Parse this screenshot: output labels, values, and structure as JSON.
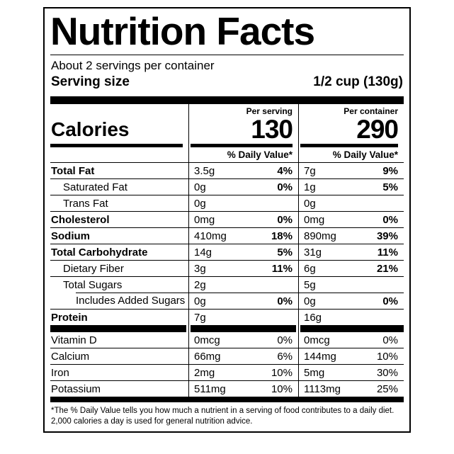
{
  "colors": {
    "text": "#000000",
    "background": "#ffffff"
  },
  "label": {
    "title": "Nutrition Facts",
    "servings_per_container": "About 2 servings per container",
    "serving_size_label": "Serving size",
    "serving_size_value": "1/2 cup (130g)",
    "calories": {
      "label": "Calories",
      "per_serving_header": "Per serving",
      "per_serving_value": "130",
      "per_container_header": "Per container",
      "per_container_value": "290"
    },
    "daily_value_header": "% Daily Value*",
    "nutrients": [
      {
        "name": "Total Fat",
        "serving_amount": "3.5g",
        "serving_dv": "4%",
        "container_amount": "7g",
        "container_dv": "9%"
      },
      {
        "name": "Saturated Fat",
        "serving_amount": "0g",
        "serving_dv": "0%",
        "container_amount": "1g",
        "container_dv": "5%"
      },
      {
        "name": "Trans Fat",
        "serving_amount": "0g",
        "serving_dv": "",
        "container_amount": "0g",
        "container_dv": ""
      },
      {
        "name": "Cholesterol",
        "serving_amount": "0mg",
        "serving_dv": "0%",
        "container_amount": "0mg",
        "container_dv": "0%"
      },
      {
        "name": "Sodium",
        "serving_amount": "410mg",
        "serving_dv": "18%",
        "container_amount": "890mg",
        "container_dv": "39%"
      },
      {
        "name": "Total Carbohydrate",
        "serving_amount": "14g",
        "serving_dv": "5%",
        "container_amount": "31g",
        "container_dv": "11%"
      },
      {
        "name": "Dietary Fiber",
        "serving_amount": "3g",
        "serving_dv": "11%",
        "container_amount": "6g",
        "container_dv": "21%"
      },
      {
        "name": "Total Sugars",
        "serving_amount": "2g",
        "serving_dv": "",
        "container_amount": "5g",
        "container_dv": ""
      },
      {
        "name": "Includes Added Sugars",
        "serving_amount": "0g",
        "serving_dv": "0%",
        "container_amount": "0g",
        "container_dv": "0%"
      },
      {
        "name": "Protein",
        "serving_amount": "7g",
        "serving_dv": "",
        "container_amount": "16g",
        "container_dv": ""
      }
    ],
    "vitamins": [
      {
        "name": "Vitamin D",
        "serving_amount": "0mcg",
        "serving_dv": "0%",
        "container_amount": "0mcg",
        "container_dv": "0%"
      },
      {
        "name": "Calcium",
        "serving_amount": "66mg",
        "serving_dv": "6%",
        "container_amount": "144mg",
        "container_dv": "10%"
      },
      {
        "name": "Iron",
        "serving_amount": "2mg",
        "serving_dv": "10%",
        "container_amount": "5mg",
        "container_dv": "30%"
      },
      {
        "name": "Potassium",
        "serving_amount": "511mg",
        "serving_dv": "10%",
        "container_amount": "1113mg",
        "container_dv": "25%"
      }
    ],
    "footnote_lines": [
      "*The % Daily Value tells you how much a nutrient in a serving of food contributes to a daily diet.",
      "2,000 calories a day is used for general nutrition advice."
    ]
  }
}
